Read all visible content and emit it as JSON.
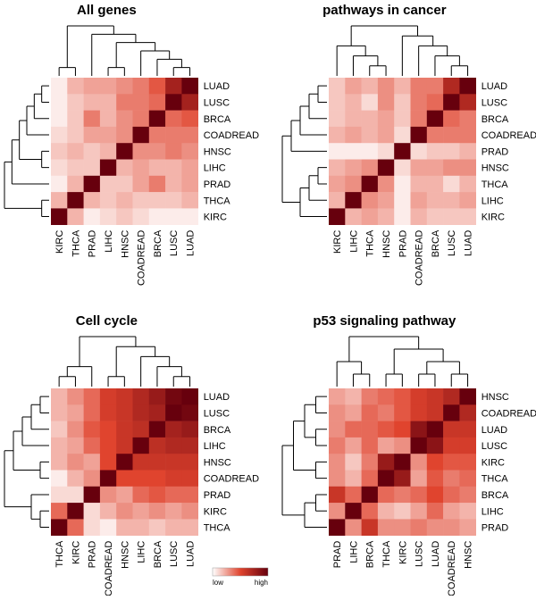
{
  "chart_data": [
    {
      "type": "heatmap",
      "title": "All genes",
      "columns": [
        "KIRC",
        "THCA",
        "PRAD",
        "LIHC",
        "HNSC",
        "COADREAD",
        "BRCA",
        "LUSC",
        "LUAD"
      ],
      "rows": [
        "LUAD",
        "LUSC",
        "BRCA",
        "COADREAD",
        "HNSC",
        "LIHC",
        "PRAD",
        "THCA",
        "KIRC"
      ],
      "values": [
        [
          0.05,
          0.2,
          0.25,
          0.25,
          0.3,
          0.35,
          0.45,
          0.75,
          1
        ],
        [
          0.05,
          0.15,
          0.2,
          0.2,
          0.35,
          0.35,
          0.4,
          1,
          0.75
        ],
        [
          0.05,
          0.15,
          0.35,
          0.2,
          0.3,
          0.35,
          1,
          0.4,
          0.45
        ],
        [
          0.1,
          0.15,
          0.25,
          0.25,
          0.3,
          1,
          0.35,
          0.35,
          0.35
        ],
        [
          0.15,
          0.2,
          0.15,
          0.2,
          1,
          0.3,
          0.3,
          0.35,
          0.3
        ],
        [
          0.1,
          0.15,
          0.15,
          1,
          0.2,
          0.25,
          0.2,
          0.2,
          0.25
        ],
        [
          0.05,
          0.2,
          1,
          0.15,
          0.15,
          0.25,
          0.35,
          0.2,
          0.25
        ],
        [
          0.2,
          1,
          0.2,
          0.15,
          0.2,
          0.15,
          0.15,
          0.15,
          0.2
        ],
        [
          1,
          0.2,
          0.05,
          0.1,
          0.15,
          0.1,
          0.05,
          0.05,
          0.05
        ]
      ]
    },
    {
      "type": "heatmap",
      "title": "pathways in cancer",
      "columns": [
        "KIRC",
        "LIHC",
        "THCA",
        "HNSC",
        "PRAD",
        "COADREAD",
        "BRCA",
        "LUSC",
        "LUAD"
      ],
      "rows": [
        "LUAD",
        "LUSC",
        "BRCA",
        "COADREAD",
        "PRAD",
        "HNSC",
        "THCA",
        "LIHC",
        "KIRC"
      ],
      "values": [
        [
          0.15,
          0.25,
          0.2,
          0.3,
          0.2,
          0.35,
          0.35,
          0.7,
          1
        ],
        [
          0.15,
          0.2,
          0.1,
          0.3,
          0.15,
          0.35,
          0.4,
          1,
          0.7
        ],
        [
          0.15,
          0.2,
          0.2,
          0.25,
          0.15,
          0.35,
          1,
          0.4,
          0.35
        ],
        [
          0.2,
          0.25,
          0.2,
          0.25,
          0.1,
          1,
          0.35,
          0.35,
          0.35
        ],
        [
          0.05,
          0.05,
          0.05,
          0.1,
          1,
          0.1,
          0.15,
          0.15,
          0.2
        ],
        [
          0.2,
          0.25,
          0.3,
          1,
          0.1,
          0.25,
          0.25,
          0.3,
          0.3
        ],
        [
          0.25,
          0.3,
          1,
          0.3,
          0.05,
          0.2,
          0.2,
          0.1,
          0.2
        ],
        [
          0.2,
          1,
          0.3,
          0.25,
          0.05,
          0.25,
          0.2,
          0.2,
          0.25
        ],
        [
          1,
          0.2,
          0.25,
          0.2,
          0.05,
          0.2,
          0.15,
          0.15,
          0.15
        ]
      ]
    },
    {
      "type": "heatmap",
      "title": "Cell cycle",
      "columns": [
        "THCA",
        "KIRC",
        "PRAD",
        "COADREAD",
        "HNSC",
        "LIHC",
        "BRCA",
        "LUSC",
        "LUAD"
      ],
      "rows": [
        "LUAD",
        "LUSC",
        "BRCA",
        "LIHC",
        "HNSC",
        "COADREAD",
        "PRAD",
        "KIRC",
        "THCA"
      ],
      "values": [
        [
          0.2,
          0.3,
          0.4,
          0.55,
          0.6,
          0.7,
          0.8,
          0.95,
          1
        ],
        [
          0.2,
          0.25,
          0.4,
          0.55,
          0.6,
          0.7,
          0.75,
          1,
          0.95
        ],
        [
          0.15,
          0.3,
          0.45,
          0.5,
          0.6,
          0.65,
          1,
          0.75,
          0.8
        ],
        [
          0.2,
          0.25,
          0.4,
          0.5,
          0.6,
          1,
          0.65,
          0.7,
          0.7
        ],
        [
          0.2,
          0.3,
          0.25,
          0.5,
          1,
          0.6,
          0.6,
          0.6,
          0.6
        ],
        [
          0.05,
          0.2,
          0.3,
          1,
          0.5,
          0.5,
          0.5,
          0.55,
          0.55
        ],
        [
          0.1,
          0.1,
          1,
          0.3,
          0.25,
          0.4,
          0.45,
          0.4,
          0.4
        ],
        [
          0.4,
          1,
          0.1,
          0.2,
          0.3,
          0.25,
          0.3,
          0.25,
          0.3
        ],
        [
          1,
          0.4,
          0.1,
          0.05,
          0.2,
          0.2,
          0.15,
          0.2,
          0.2
        ]
      ]
    },
    {
      "type": "heatmap",
      "title": "p53 signaling pathway",
      "columns": [
        "PRAD",
        "LIHC",
        "BRCA",
        "THCA",
        "KIRC",
        "LUSC",
        "LUAD",
        "COADREAD",
        "HNSC"
      ],
      "rows": [
        "HNSC",
        "COADREAD",
        "LUAD",
        "LUSC",
        "KIRC",
        "THCA",
        "BRCA",
        "LIHC",
        "PRAD"
      ],
      "values": [
        [
          0.25,
          0.2,
          0.35,
          0.4,
          0.45,
          0.55,
          0.6,
          0.7,
          1
        ],
        [
          0.3,
          0.25,
          0.4,
          0.35,
          0.45,
          0.55,
          0.6,
          1,
          0.7
        ],
        [
          0.3,
          0.4,
          0.4,
          0.45,
          0.5,
          0.85,
          1,
          0.6,
          0.6
        ],
        [
          0.35,
          0.25,
          0.4,
          0.25,
          0.3,
          1,
          0.85,
          0.55,
          0.55
        ],
        [
          0.3,
          0.15,
          0.35,
          0.8,
          1,
          0.3,
          0.5,
          0.45,
          0.45
        ],
        [
          0.3,
          0.2,
          0.4,
          1,
          0.8,
          0.25,
          0.45,
          0.35,
          0.4
        ],
        [
          0.6,
          0.4,
          1,
          0.4,
          0.35,
          0.4,
          0.5,
          0.4,
          0.35
        ],
        [
          0.3,
          1,
          0.4,
          0.2,
          0.15,
          0.25,
          0.4,
          0.25,
          0.2
        ],
        [
          1,
          0.3,
          0.6,
          0.3,
          0.3,
          0.35,
          0.3,
          0.3,
          0.25
        ]
      ]
    }
  ],
  "legend": {
    "low": "low",
    "high": "high",
    "colors": [
      "#ffffff",
      "#e0442e",
      "#67000d"
    ]
  }
}
